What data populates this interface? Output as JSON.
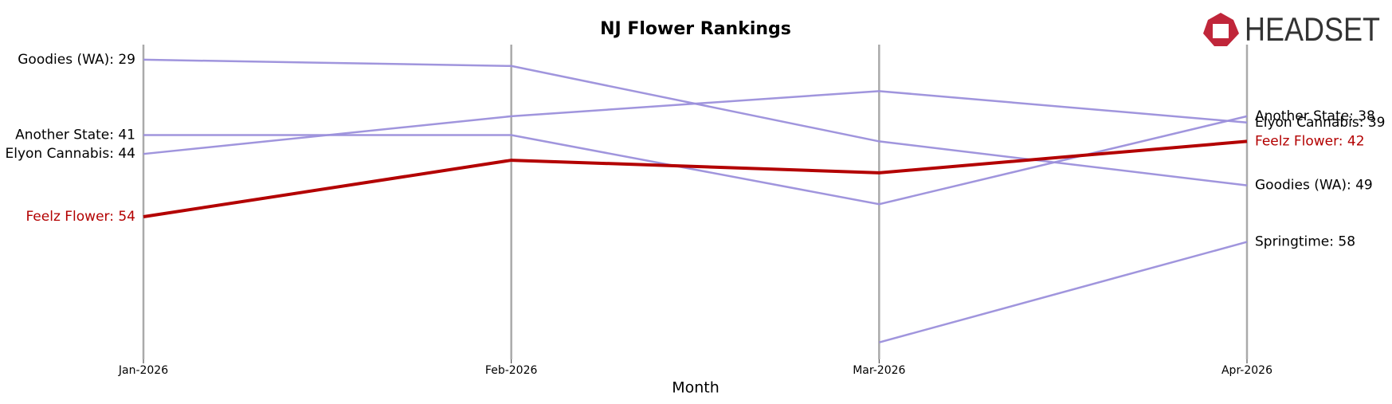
{
  "logo": "HEADSET",
  "chart_data": {
    "type": "bump",
    "title": "NJ Flower Rankings",
    "xlabel": "Month",
    "categories": [
      "Jan-2026",
      "Feb-2026",
      "Mar-2026",
      "Apr-2026"
    ],
    "ylim": [
      26.6,
      76.7
    ],
    "inverted": true,
    "grid": true,
    "series": [
      {
        "name": "Goodies (WA)",
        "color": "#9b8fdb",
        "values": [
          29,
          30,
          42,
          49
        ],
        "start_label": "Goodies (WA): 29",
        "end_label": "Goodies (WA): 49"
      },
      {
        "name": "Another State",
        "color": "#9b8fdb",
        "values": [
          41,
          41,
          52,
          38
        ],
        "start_label": "Another State: 41",
        "end_label": "Another State: 38"
      },
      {
        "name": "Elyon Cannabis",
        "color": "#9b8fdb",
        "values": [
          44,
          38,
          34,
          39
        ],
        "start_label": "Elyon Cannabis: 44",
        "end_label": "Elyon Cannabis: 39"
      },
      {
        "name": "Springtime",
        "color": "#9b8fdb",
        "values": [
          null,
          null,
          74,
          58
        ],
        "end_label": "Springtime: 58"
      },
      {
        "name": "Feelz Flower",
        "color": "#b30000",
        "highlight": true,
        "values": [
          54,
          45,
          47,
          42
        ],
        "start_label": "Feelz Flower: 54",
        "end_label": "Feelz Flower: 42"
      }
    ]
  }
}
